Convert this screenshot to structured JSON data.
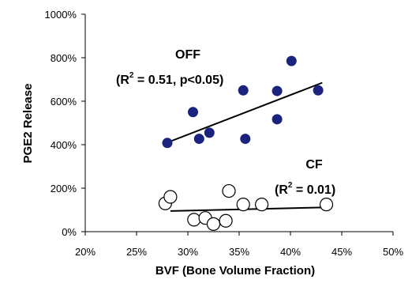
{
  "chart_data": {
    "type": "scatter",
    "title": "",
    "xlabel": "BVF (Bone Volume Fraction)",
    "ylabel": "PGE2 Release",
    "xlim": [
      0.2,
      0.5
    ],
    "ylim": [
      0,
      10
    ],
    "x_ticks": [
      "20%",
      "25%",
      "30%",
      "35%",
      "40%",
      "45%",
      "50%"
    ],
    "y_ticks": [
      "0%",
      "200%",
      "400%",
      "600%",
      "800%",
      "1000%"
    ],
    "grid": false,
    "series": [
      {
        "name": "OFF",
        "marker": "filled-circle",
        "color": "#1a237e",
        "points": [
          {
            "x": 0.28,
            "y": 4.08
          },
          {
            "x": 0.305,
            "y": 5.5
          },
          {
            "x": 0.311,
            "y": 4.27
          },
          {
            "x": 0.321,
            "y": 4.55
          },
          {
            "x": 0.354,
            "y": 6.5
          },
          {
            "x": 0.356,
            "y": 4.27
          },
          {
            "x": 0.387,
            "y": 6.47
          },
          {
            "x": 0.387,
            "y": 5.17
          },
          {
            "x": 0.401,
            "y": 7.85
          },
          {
            "x": 0.427,
            "y": 6.5
          }
        ],
        "trendline": {
          "x": [
            0.28,
            0.431
          ],
          "y": [
            4.1,
            6.85
          ]
        }
      },
      {
        "name": "CF",
        "marker": "open-circle",
        "color": "#000000",
        "points": [
          {
            "x": 0.278,
            "y": 1.3
          },
          {
            "x": 0.283,
            "y": 1.6
          },
          {
            "x": 0.306,
            "y": 0.55
          },
          {
            "x": 0.317,
            "y": 0.63
          },
          {
            "x": 0.325,
            "y": 0.35
          },
          {
            "x": 0.337,
            "y": 0.5
          },
          {
            "x": 0.34,
            "y": 1.87
          },
          {
            "x": 0.354,
            "y": 1.25
          },
          {
            "x": 0.372,
            "y": 1.25
          },
          {
            "x": 0.435,
            "y": 1.25
          }
        ],
        "trendline": {
          "x": [
            0.283,
            0.435
          ],
          "y": [
            0.95,
            1.12
          ]
        }
      }
    ],
    "annotations": [
      {
        "id": "off-label",
        "text": "OFF"
      },
      {
        "id": "off-stats",
        "prefix": "(R",
        "sup": "2",
        "suffix": " = 0.51, p<0.05)"
      },
      {
        "id": "cf-label",
        "text": "CF"
      },
      {
        "id": "cf-stats",
        "prefix": "(R",
        "sup": "2",
        "suffix": " = 0.01)"
      }
    ]
  }
}
